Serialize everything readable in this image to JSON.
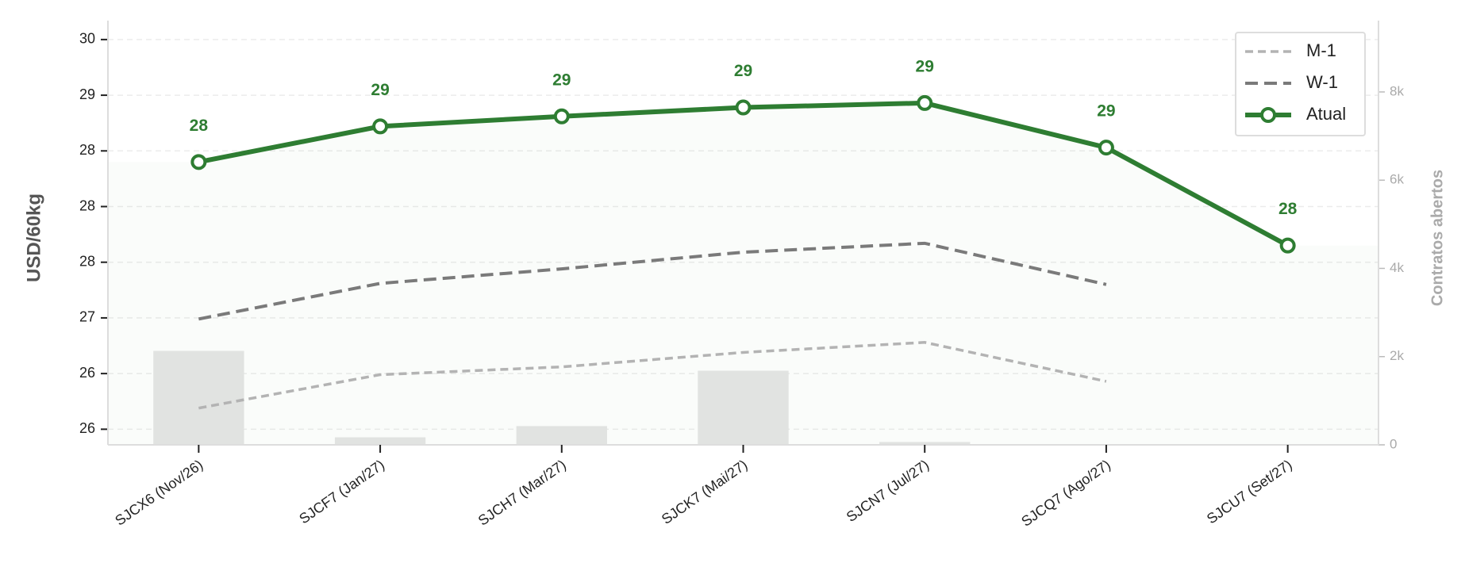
{
  "chart_data": {
    "type": "line",
    "categories": [
      "SJCX6 (Nov/26)",
      "SJCF7 (Jan/27)",
      "SJCH7 (Mar/27)",
      "SJCK7 (Mai/27)",
      "SJCN7 (Jul/27)",
      "SJCQ7 (Ago/27)",
      "SJCU7 (Set/27)"
    ],
    "series": [
      {
        "name": "M-1",
        "color": "#b3b3b3",
        "values": [
          26.19,
          26.49,
          26.56,
          26.69,
          26.78,
          26.43,
          null
        ]
      },
      {
        "name": "W-1",
        "color": "#7a7a7a",
        "values": [
          26.99,
          27.31,
          27.44,
          27.59,
          27.67,
          27.3,
          null
        ]
      },
      {
        "name": "Atual",
        "color": "#2e7d32",
        "values": [
          28.4,
          28.72,
          28.81,
          28.89,
          28.93,
          28.53,
          27.65
        ],
        "value_labels": [
          "28",
          "29",
          "29",
          "29",
          "29",
          "29",
          "28"
        ]
      },
      {
        "name": "Contratos abertos",
        "type": "bar",
        "axis": "y2",
        "color": "#e6e6e6",
        "values": [
          2130,
          170,
          425,
          1680,
          64,
          0,
          0
        ]
      }
    ],
    "ylabel": "USD/60kg",
    "y2label": "Contratos abertos",
    "ylim": [
      25.86,
      29.67
    ],
    "yticks": [
      {
        "value": 26.0,
        "label": "26"
      },
      {
        "value": 26.5,
        "label": "26"
      },
      {
        "value": 27.0,
        "label": "27"
      },
      {
        "value": 27.5,
        "label": "28"
      },
      {
        "value": 28.0,
        "label": "28"
      },
      {
        "value": 28.5,
        "label": "28"
      },
      {
        "value": 29.0,
        "label": "29"
      },
      {
        "value": 29.5,
        "label": "30"
      }
    ],
    "y2lim": [
      0,
      9617
    ],
    "y2ticks": [
      0,
      {
        "value": 2000,
        "label": "2k"
      },
      {
        "value": 4000,
        "label": "4k"
      },
      {
        "value": 6000,
        "label": "6k"
      },
      {
        "value": 8000,
        "label": "8k"
      }
    ],
    "grid": true,
    "legend": "upper right"
  }
}
